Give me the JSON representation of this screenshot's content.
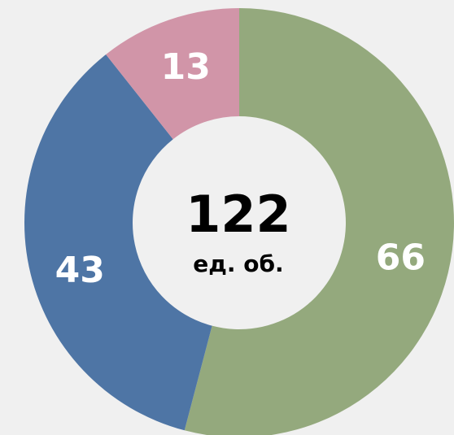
{
  "chart_data": {
    "type": "donut",
    "categories": [
      null,
      null,
      null
    ],
    "values": [
      66,
      43,
      13
    ],
    "colors": [
      "#94a97d",
      "#4e75a5",
      "#d195a8"
    ],
    "center_value": 122,
    "center_label": "ед. об."
  }
}
